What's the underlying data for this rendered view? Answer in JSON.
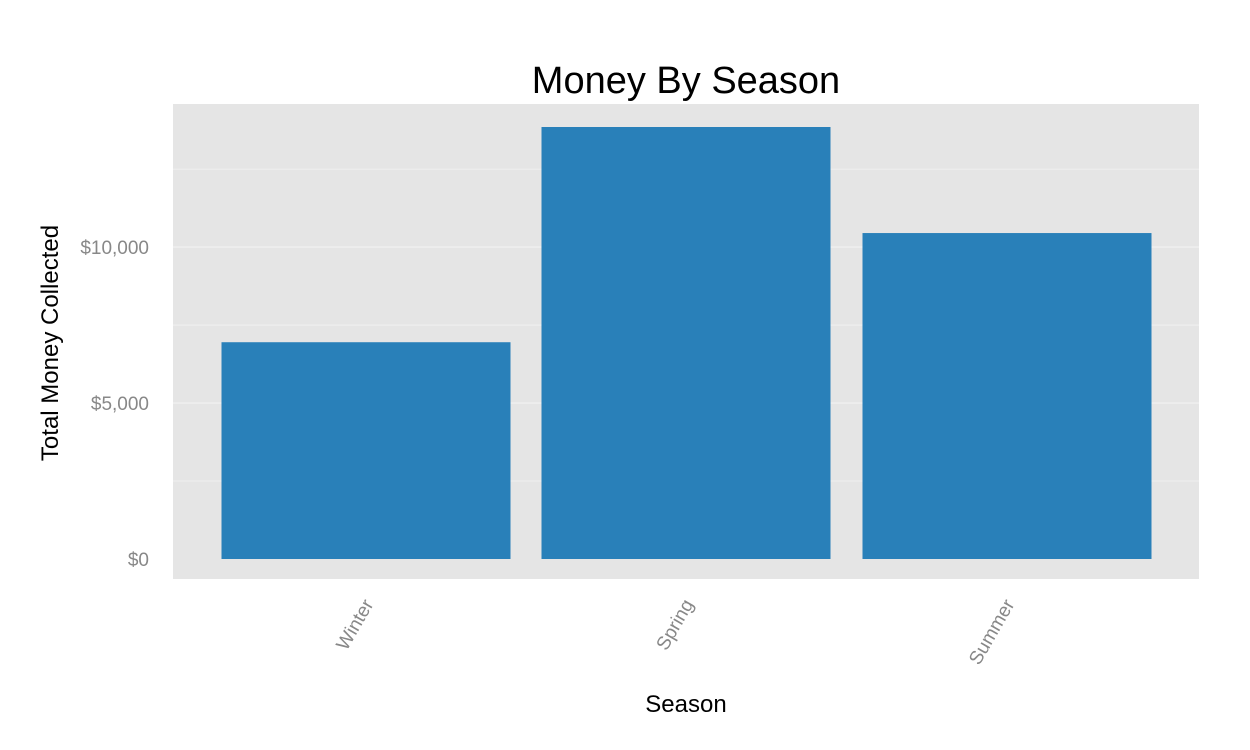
{
  "chart_data": {
    "type": "bar",
    "title": "Money By Season",
    "xlabel": "Season",
    "ylabel": "Total Money Collected",
    "categories": [
      "Winter",
      "Spring",
      "Summer"
    ],
    "values": [
      6950,
      13850,
      10450
    ],
    "ylim": [
      0,
      14500
    ],
    "yticks": [
      0,
      5000,
      10000
    ],
    "ytick_labels": [
      "$0",
      "$5,000",
      "$10,000"
    ],
    "grid": true,
    "x_tick_rotation_deg": -60,
    "colors": {
      "bar": "#2980B9",
      "panel": "#E5E5E5",
      "grid": "#F2F2F2",
      "tick_text": "#888888"
    }
  }
}
